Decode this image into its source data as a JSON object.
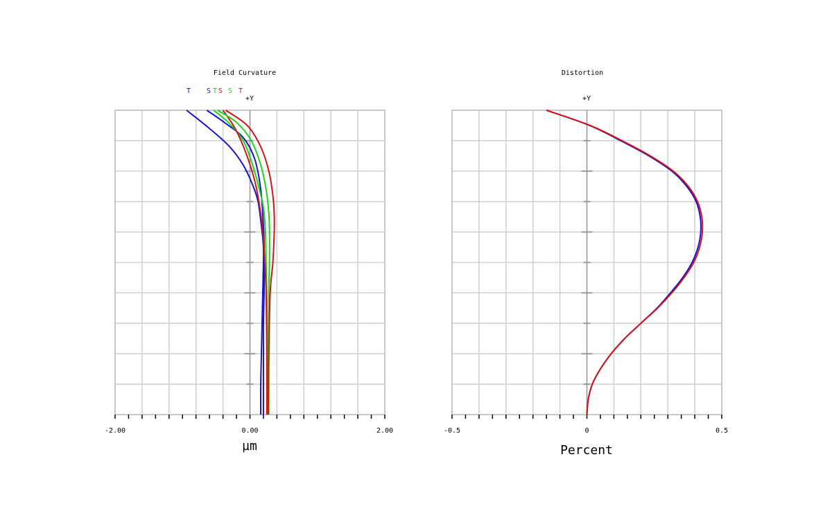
{
  "colors": {
    "blue": "#1414d2",
    "green": "#1ed21e",
    "red": "#d21414",
    "grid": "#cfcfcf",
    "frame": "#c8c8c8",
    "axis": "#9a9a9a"
  },
  "chart_data": [
    {
      "type": "line",
      "title": "Field Curvature",
      "field_label": "+Y",
      "xlabel": "µm",
      "xlim": [
        -2.0,
        2.0
      ],
      "ylim": [
        0,
        1
      ],
      "tick_labels": [
        "-2.00",
        "0.00",
        "2.00"
      ],
      "tick_values": [
        -2.0,
        0.0,
        2.0
      ],
      "legend": [
        {
          "text": "T",
          "color": "blue"
        },
        {
          "text": "S",
          "color": "blue"
        },
        {
          "text": "T",
          "color": "green"
        },
        {
          "text": "S",
          "color": "red"
        },
        {
          "text": "S",
          "color": "green"
        },
        {
          "text": "T",
          "color": "red"
        }
      ],
      "grid": true,
      "series": [
        {
          "color": "blue",
          "points": [
            [
              0.16,
              0
            ],
            [
              0.16,
              0.1
            ],
            [
              0.17,
              0.2
            ],
            [
              0.18,
              0.3
            ],
            [
              0.19,
              0.4
            ],
            [
              0.2,
              0.5
            ],
            [
              0.2,
              0.55
            ],
            [
              0.18,
              0.6
            ],
            [
              0.12,
              0.7
            ],
            [
              0.03,
              0.76
            ],
            [
              -0.1,
              0.82
            ],
            [
              -0.3,
              0.88
            ],
            [
              -0.6,
              0.94
            ],
            [
              -0.94,
              1.0
            ]
          ]
        },
        {
          "color": "blue",
          "points": [
            [
              0.2,
              0
            ],
            [
              0.2,
              0.1
            ],
            [
              0.2,
              0.2
            ],
            [
              0.2,
              0.3
            ],
            [
              0.21,
              0.4
            ],
            [
              0.21,
              0.5
            ],
            [
              0.21,
              0.56
            ],
            [
              0.2,
              0.62
            ],
            [
              0.16,
              0.74
            ],
            [
              0.07,
              0.84
            ],
            [
              -0.1,
              0.91
            ],
            [
              -0.38,
              0.96
            ],
            [
              -0.64,
              1.0
            ]
          ]
        },
        {
          "color": "green",
          "points": [
            [
              0.26,
              0
            ],
            [
              0.26,
              0.2
            ],
            [
              0.25,
              0.4
            ],
            [
              0.24,
              0.5
            ],
            [
              0.23,
              0.6
            ],
            [
              0.2,
              0.68
            ],
            [
              0.14,
              0.74
            ],
            [
              0.04,
              0.82
            ],
            [
              -0.1,
              0.9
            ],
            [
              -0.32,
              0.96
            ],
            [
              -0.54,
              1.0
            ]
          ]
        },
        {
          "color": "red",
          "points": [
            [
              0.25,
              0
            ],
            [
              0.25,
              0.2
            ],
            [
              0.24,
              0.4
            ],
            [
              0.22,
              0.5
            ],
            [
              0.2,
              0.58
            ],
            [
              0.16,
              0.66
            ],
            [
              0.08,
              0.76
            ],
            [
              -0.06,
              0.86
            ],
            [
              -0.22,
              0.94
            ],
            [
              -0.4,
              1.0
            ]
          ]
        },
        {
          "color": "green",
          "points": [
            [
              0.28,
              0
            ],
            [
              0.28,
              0.2
            ],
            [
              0.28,
              0.4
            ],
            [
              0.29,
              0.5
            ],
            [
              0.29,
              0.6
            ],
            [
              0.28,
              0.66
            ],
            [
              0.24,
              0.74
            ],
            [
              0.16,
              0.82
            ],
            [
              0.02,
              0.9
            ],
            [
              -0.2,
              0.96
            ],
            [
              -0.48,
              1.0
            ]
          ]
        },
        {
          "color": "red",
          "points": [
            [
              0.27,
              0
            ],
            [
              0.28,
              0.2
            ],
            [
              0.3,
              0.4
            ],
            [
              0.34,
              0.5
            ],
            [
              0.36,
              0.6
            ],
            [
              0.36,
              0.66
            ],
            [
              0.34,
              0.72
            ],
            [
              0.28,
              0.8
            ],
            [
              0.16,
              0.88
            ],
            [
              -0.04,
              0.95
            ],
            [
              -0.36,
              1.0
            ]
          ]
        }
      ]
    },
    {
      "type": "line",
      "title": "Distortion",
      "field_label": "+Y",
      "xlabel": "Percent",
      "xlim": [
        -0.5,
        0.5
      ],
      "ylim": [
        0,
        1
      ],
      "tick_labels": [
        "-0.5",
        "0",
        "0.5"
      ],
      "tick_values": [
        -0.5,
        0.0,
        0.5
      ],
      "grid": true,
      "series": [
        {
          "color": "blue",
          "points": [
            [
              0,
              0
            ],
            [
              0.005,
              0.05
            ],
            [
              0.02,
              0.1
            ],
            [
              0.05,
              0.15
            ],
            [
              0.09,
              0.2
            ],
            [
              0.14,
              0.25
            ],
            [
              0.2,
              0.3
            ],
            [
              0.26,
              0.35
            ],
            [
              0.31,
              0.4
            ],
            [
              0.355,
              0.45
            ],
            [
              0.39,
              0.5
            ],
            [
              0.412,
              0.55
            ],
            [
              0.422,
              0.6
            ],
            [
              0.42,
              0.65
            ],
            [
              0.405,
              0.7
            ],
            [
              0.37,
              0.75
            ],
            [
              0.315,
              0.8
            ],
            [
              0.23,
              0.85
            ],
            [
              0.125,
              0.9
            ],
            [
              0.01,
              0.95
            ],
            [
              -0.15,
              1.0
            ]
          ]
        },
        {
          "color": "red",
          "points": [
            [
              0,
              0
            ],
            [
              0.005,
              0.05
            ],
            [
              0.02,
              0.1
            ],
            [
              0.05,
              0.15
            ],
            [
              0.09,
              0.2
            ],
            [
              0.14,
              0.25
            ],
            [
              0.2,
              0.3
            ],
            [
              0.262,
              0.35
            ],
            [
              0.315,
              0.4
            ],
            [
              0.36,
              0.45
            ],
            [
              0.396,
              0.5
            ],
            [
              0.418,
              0.55
            ],
            [
              0.428,
              0.6
            ],
            [
              0.426,
              0.65
            ],
            [
              0.41,
              0.7
            ],
            [
              0.376,
              0.75
            ],
            [
              0.32,
              0.8
            ],
            [
              0.235,
              0.85
            ],
            [
              0.13,
              0.9
            ],
            [
              0.012,
              0.95
            ],
            [
              -0.15,
              1.0
            ]
          ]
        }
      ]
    }
  ]
}
